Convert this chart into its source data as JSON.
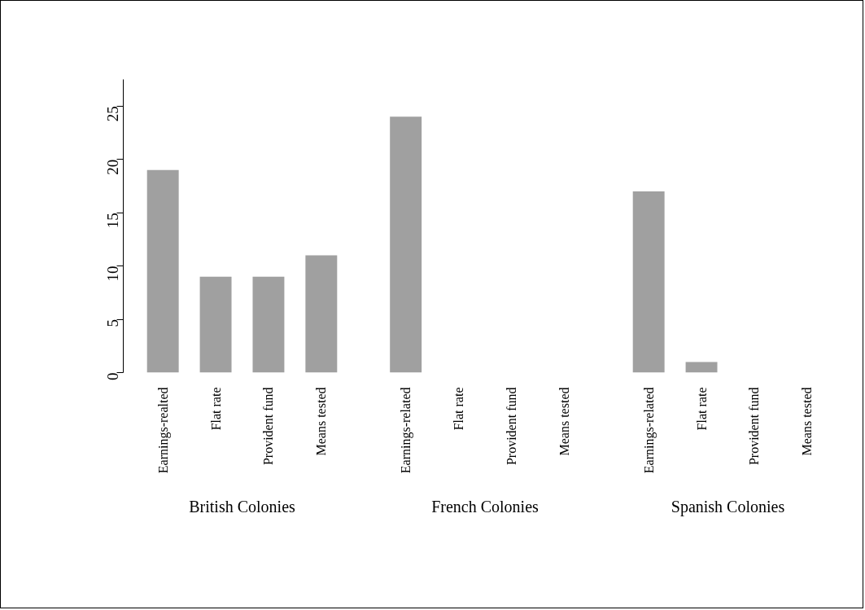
{
  "chart_data": {
    "type": "bar",
    "categories": [
      "Earnings-realted",
      "Flat rate",
      "Provident fund",
      "Means tested",
      "Earnings-related",
      "Flat rate",
      "Provident fund",
      "Means tested",
      "Earnings-related",
      "Flat rate",
      "Provident fund",
      "Means tested"
    ],
    "values": [
      19,
      9,
      9,
      11,
      24,
      0,
      0,
      0,
      17,
      1,
      0,
      0
    ],
    "color": "#a0a0a0",
    "ylim": [
      0,
      27.5
    ],
    "yticks": [
      0,
      5,
      10,
      15,
      20,
      25
    ],
    "grid": false,
    "annotations": [
      "British Colonies",
      "French Colonies",
      "Spanish Colonies"
    ]
  }
}
